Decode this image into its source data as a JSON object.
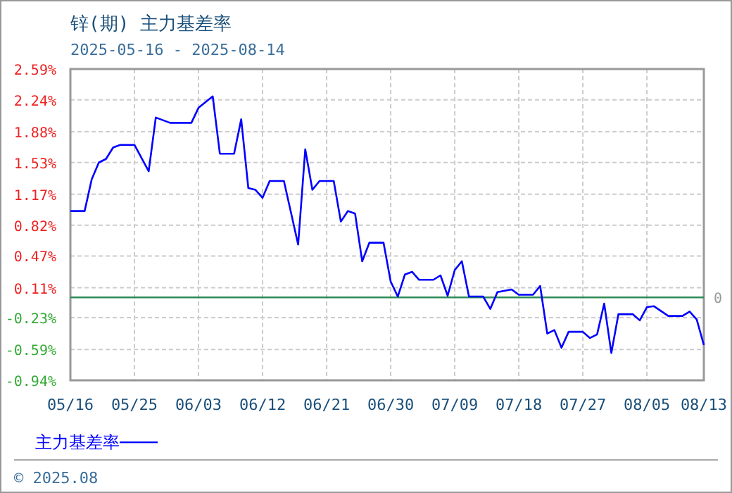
{
  "chart_data": {
    "type": "line",
    "title": "锌(期) 主力基差率",
    "subtitle": "2025-05-16 - 2025-08-14",
    "x": [
      "2025-05-16",
      "2025-05-18",
      "2025-05-19",
      "2025-05-20",
      "2025-05-21",
      "2025-05-22",
      "2025-05-23",
      "2025-05-25",
      "2025-05-27",
      "2025-05-28",
      "2025-05-30",
      "2025-06-02",
      "2025-06-03",
      "2025-06-05",
      "2025-06-06",
      "2025-06-08",
      "2025-06-09",
      "2025-06-10",
      "2025-06-11",
      "2025-06-12",
      "2025-06-13",
      "2025-06-15",
      "2025-06-17",
      "2025-06-18",
      "2025-06-19",
      "2025-06-20",
      "2025-06-22",
      "2025-06-23",
      "2025-06-24",
      "2025-06-25",
      "2025-06-26",
      "2025-06-27",
      "2025-06-29",
      "2025-06-30",
      "2025-07-01",
      "2025-07-02",
      "2025-07-03",
      "2025-07-04",
      "2025-07-06",
      "2025-07-07",
      "2025-07-08",
      "2025-07-09",
      "2025-07-10",
      "2025-07-11",
      "2025-07-13",
      "2025-07-14",
      "2025-07-15",
      "2025-07-17",
      "2025-07-18",
      "2025-07-20",
      "2025-07-21",
      "2025-07-22",
      "2025-07-23",
      "2025-07-24",
      "2025-07-25",
      "2025-07-27",
      "2025-07-28",
      "2025-07-29",
      "2025-07-30",
      "2025-07-31",
      "2025-08-01",
      "2025-08-03",
      "2025-08-04",
      "2025-08-05",
      "2025-08-06",
      "2025-08-08",
      "2025-08-10",
      "2025-08-11",
      "2025-08-12",
      "2025-08-13"
    ],
    "series": [
      {
        "name": "主力基差率",
        "color": "#0000ff",
        "values": [
          0.98,
          0.98,
          1.34,
          1.53,
          1.57,
          1.7,
          1.73,
          1.73,
          1.43,
          2.04,
          1.98,
          1.98,
          2.15,
          2.28,
          1.63,
          1.63,
          2.02,
          1.24,
          1.22,
          1.13,
          1.32,
          1.32,
          0.6,
          1.68,
          1.22,
          1.32,
          1.32,
          0.86,
          0.98,
          0.95,
          0.41,
          0.62,
          0.62,
          0.18,
          0.01,
          0.26,
          0.29,
          0.2,
          0.2,
          0.25,
          0.02,
          0.31,
          0.41,
          0.01,
          0.01,
          -0.13,
          0.06,
          0.09,
          0.03,
          0.03,
          0.13,
          -0.41,
          -0.37,
          -0.57,
          -0.39,
          -0.39,
          -0.46,
          -0.42,
          -0.07,
          -0.63,
          -0.19,
          -0.19,
          -0.26,
          -0.11,
          -0.1,
          -0.21,
          -0.21,
          -0.16,
          -0.25,
          -0.54
        ]
      }
    ],
    "xlim": [
      "2025-05-16",
      "2025-08-13"
    ],
    "xticks": [
      {
        "value": "2025-05-16",
        "label": "05/16"
      },
      {
        "value": "2025-05-25",
        "label": "05/25"
      },
      {
        "value": "2025-06-03",
        "label": "06/03"
      },
      {
        "value": "2025-06-12",
        "label": "06/12"
      },
      {
        "value": "2025-06-21",
        "label": "06/21"
      },
      {
        "value": "2025-06-30",
        "label": "06/30"
      },
      {
        "value": "2025-07-09",
        "label": "07/09"
      },
      {
        "value": "2025-07-18",
        "label": "07/18"
      },
      {
        "value": "2025-07-27",
        "label": "07/27"
      },
      {
        "value": "2025-08-05",
        "label": "08/05"
      },
      {
        "value": "2025-08-13",
        "label": "08/13"
      }
    ],
    "ylim": [
      -0.94,
      2.59
    ],
    "yticks": [
      {
        "value": 2.59,
        "label": "2.59%"
      },
      {
        "value": 2.24,
        "label": "2.24%"
      },
      {
        "value": 1.88,
        "label": "1.88%"
      },
      {
        "value": 1.53,
        "label": "1.53%"
      },
      {
        "value": 1.17,
        "label": "1.17%"
      },
      {
        "value": 0.82,
        "label": "0.82%"
      },
      {
        "value": 0.47,
        "label": "0.47%"
      },
      {
        "value": 0.11,
        "label": "0.11%"
      },
      {
        "value": -0.23,
        "label": "-0.23%"
      },
      {
        "value": -0.59,
        "label": "-0.59%"
      },
      {
        "value": -0.94,
        "label": "-0.94%"
      }
    ],
    "ref_lines": [
      {
        "axis": "y",
        "value": 0,
        "label": "0",
        "color": "#2e8b57"
      }
    ],
    "grid": true,
    "legend": "bottom",
    "marker": "none",
    "line_style": "solid",
    "annotations": [
      "© 2025.08"
    ]
  }
}
